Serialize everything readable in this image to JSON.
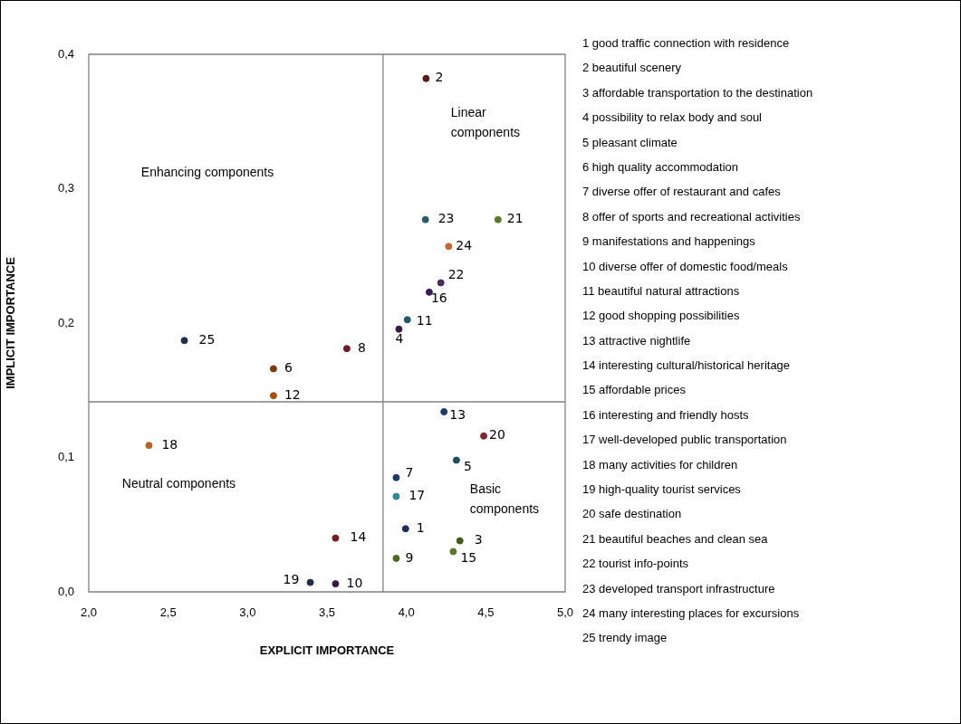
{
  "chart_data": {
    "type": "scatter",
    "xlabel": "EXPLICIT IMPORTANCE",
    "ylabel": "IMPLICIT IMPORTANCE",
    "xlim": [
      2,
      5
    ],
    "xticks": [
      {
        "value": 2,
        "label": "2,0"
      },
      {
        "value": 2.5,
        "label": "2,5"
      },
      {
        "value": 3,
        "label": "3,0"
      },
      {
        "value": 3.5,
        "label": "3,5"
      },
      {
        "value": 4,
        "label": "4,0"
      },
      {
        "value": 4.5,
        "label": "4,5"
      },
      {
        "value": 5,
        "label": "5,0"
      }
    ],
    "ylim": [
      0,
      0.4
    ],
    "yticks": [
      {
        "value": 0,
        "label": "0,0"
      },
      {
        "value": 0.1,
        "label": "0,1"
      },
      {
        "value": 0.2,
        "label": "0,2"
      },
      {
        "value": 0.3,
        "label": "0,3"
      },
      {
        "value": 0.4,
        "label": "0,4"
      }
    ],
    "grid": false,
    "legend": false,
    "marker": "circle",
    "x": [
      3.995,
      4.124,
      4.337,
      3.953,
      4.315,
      3.163,
      3.936,
      3.625,
      3.936,
      3.554,
      4.006,
      3.163,
      4.237,
      3.554,
      4.295,
      4.144,
      3.936,
      2.379,
      3.395,
      4.487,
      4.577,
      4.217,
      4.12,
      4.266,
      2.602
    ],
    "values": [
      0.047,
      0.382,
      0.038,
      0.1955,
      0.098,
      0.166,
      0.085,
      0.181,
      0.025,
      0.006,
      0.2025,
      0.146,
      0.134,
      0.04,
      0.03,
      0.223,
      0.071,
      0.109,
      0.007,
      0.116,
      0.277,
      0.23,
      0.277,
      0.257,
      0.187
    ],
    "colors": [
      "#1f2f5a",
      "#5a1a1a",
      "#3f5a1a",
      "#3a1a4a",
      "#1f4e5f",
      "#7a3a10",
      "#1f3a6a",
      "#6a1a2a",
      "#4a6a1a",
      "#3a1a4a",
      "#1f5a6a",
      "#a05010",
      "#1f3a6a",
      "#7a1a1a",
      "#5a7a2a",
      "#3a1a5a",
      "#2a8a9a",
      "#c06020",
      "#1f2f4a",
      "#7a2a2a",
      "#5a7a2a",
      "#4a2a5a",
      "#2a5a6a",
      "#c06a3a",
      "#1f2f4a"
    ],
    "ref_lines": [
      {
        "axis": "x",
        "value": 3.853,
        "color": "#808080"
      },
      {
        "axis": "y",
        "value": 0.1414,
        "color": "#808080"
      }
    ],
    "annotations": [
      "Enhancing components",
      "Linear components",
      "Neutral components",
      "Basic components",
      "1 good traffic connection with residence",
      "2 beautiful scenery",
      "3 affordable transportation to the destination",
      "4 possibility to relax body and soul",
      "5 pleasant climate",
      "6 high quality accommodation",
      "7 diverse offer of restaurant and cafes",
      "8 offer of sports and recreational activities",
      "9 manifestations and happenings",
      "10 diverse offer of domestic food/meals",
      "11 beautiful natural attractions",
      "12 good shopping possibilities",
      "13 attractive nightlife",
      "14 interesting cultural/historical heritage",
      "15 affordable prices",
      "16 interesting and friendly hosts",
      "17 well-developed public transportation",
      "18 many activities for children",
      "19 high-quality tourist services",
      "20 safe destination",
      "21 beautiful beaches and clean sea",
      "22 tourist info-points",
      "23 developed transport infrastructure",
      "24 many interesting places for excursions",
      "25 trendy image",
      {
        "text": "1",
        "x": 3.995,
        "y": 0.047
      },
      {
        "text": "2",
        "x": 4.124,
        "y": 0.382
      },
      {
        "text": "3",
        "x": 4.337,
        "y": 0.038
      },
      {
        "text": "4",
        "x": 3.953,
        "y": 0.1955
      },
      {
        "text": "5",
        "x": 4.315,
        "y": 0.098
      },
      {
        "text": "6",
        "x": 3.163,
        "y": 0.166
      },
      {
        "text": "7",
        "x": 3.936,
        "y": 0.085
      },
      {
        "text": "8",
        "x": 3.625,
        "y": 0.181
      },
      {
        "text": "9",
        "x": 3.936,
        "y": 0.025
      },
      {
        "text": "10",
        "x": 3.554,
        "y": 0.006
      },
      {
        "text": "11",
        "x": 4.006,
        "y": 0.2025
      },
      {
        "text": "12",
        "x": 3.163,
        "y": 0.146
      },
      {
        "text": "13",
        "x": 4.237,
        "y": 0.134
      },
      {
        "text": "14",
        "x": 3.554,
        "y": 0.04
      },
      {
        "text": "15",
        "x": 4.295,
        "y": 0.03
      },
      {
        "text": "16",
        "x": 4.144,
        "y": 0.223
      },
      {
        "text": "17",
        "x": 3.936,
        "y": 0.071
      },
      {
        "text": "18",
        "x": 2.379,
        "y": 0.109
      },
      {
        "text": "19",
        "x": 3.395,
        "y": 0.007
      },
      {
        "text": "20",
        "x": 4.487,
        "y": 0.116
      },
      {
        "text": "21",
        "x": 4.577,
        "y": 0.277
      },
      {
        "text": "22",
        "x": 4.217,
        "y": 0.23
      },
      {
        "text": "23",
        "x": 4.12,
        "y": 0.277
      },
      {
        "text": "24",
        "x": 4.266,
        "y": 0.257
      },
      {
        "text": "25",
        "x": 2.602,
        "y": 0.187
      }
    ]
  }
}
